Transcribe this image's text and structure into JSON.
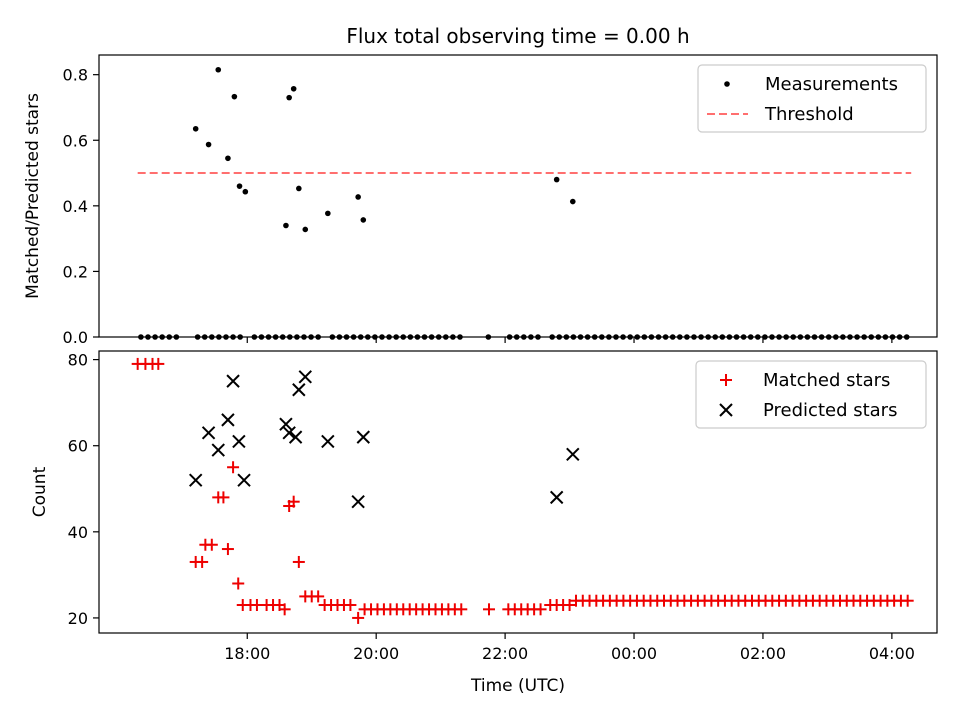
{
  "figure_title": "Flux total observing time = 0.00 h",
  "colors": {
    "measurement": "#000000",
    "threshold": "#ff6f6f",
    "matched": "#ee0000",
    "predicted": "#000000"
  },
  "chart_data": [
    {
      "type": "scatter",
      "title": "Flux total observing time = 0.00 h",
      "xlabel": "",
      "ylabel": "Matched/Predicted stars",
      "x_unit": "hours since 00:00 UTC of first day",
      "xlim": [
        15.7,
        28.7
      ],
      "ylim": [
        0,
        0.86
      ],
      "yticks": [
        0.0,
        0.2,
        0.4,
        0.6,
        0.8
      ],
      "ytick_labels": [
        "0.0",
        "0.2",
        "0.4",
        "0.6",
        "0.8"
      ],
      "legend": {
        "placement": "upper-right",
        "entries": [
          "Measurements",
          "Threshold"
        ]
      },
      "threshold": {
        "name": "Threshold",
        "value": 0.5,
        "x_range": [
          16.3,
          28.3
        ]
      },
      "series": [
        {
          "name": "Measurements",
          "points": [
            [
              17.2,
              0.635
            ],
            [
              17.4,
              0.587
            ],
            [
              17.55,
              0.815
            ],
            [
              17.7,
              0.545
            ],
            [
              17.8,
              0.733
            ],
            [
              17.88,
              0.46
            ],
            [
              17.97,
              0.443
            ],
            [
              18.6,
              0.34
            ],
            [
              18.65,
              0.73
            ],
            [
              18.72,
              0.757
            ],
            [
              18.8,
              0.453
            ],
            [
              18.9,
              0.328
            ],
            [
              19.25,
              0.377
            ],
            [
              19.72,
              0.427
            ],
            [
              19.8,
              0.357
            ],
            [
              22.8,
              0.48
            ],
            [
              23.05,
              0.413
            ]
          ],
          "zero_x_start": 16.35,
          "zero_x_end": 28.3,
          "zero_x_step": 0.11
        }
      ]
    },
    {
      "type": "scatter",
      "title": "",
      "xlabel": "Time (UTC)",
      "ylabel": "Count",
      "xlim": [
        15.7,
        28.7
      ],
      "ylim": [
        16.5,
        82
      ],
      "yticks": [
        20,
        40,
        60,
        80
      ],
      "ytick_labels": [
        "20",
        "40",
        "60",
        "80"
      ],
      "xticks": [
        18,
        20,
        22,
        24,
        26,
        28
      ],
      "xtick_labels": [
        "18:00",
        "20:00",
        "22:00",
        "00:00",
        "02:00",
        "04:00"
      ],
      "legend": {
        "placement": "upper-right",
        "entries": [
          "Matched stars",
          "Predicted stars"
        ]
      },
      "series": [
        {
          "name": "Matched stars",
          "marker": "plus",
          "points": [
            [
              16.3,
              79
            ],
            [
              16.42,
              79
            ],
            [
              16.53,
              79
            ],
            [
              16.62,
              79
            ],
            [
              17.2,
              33
            ],
            [
              17.3,
              33
            ],
            [
              17.35,
              37
            ],
            [
              17.45,
              37
            ],
            [
              17.55,
              48
            ],
            [
              17.63,
              48
            ],
            [
              17.7,
              36
            ],
            [
              17.78,
              55
            ],
            [
              17.86,
              28
            ],
            [
              17.93,
              23
            ],
            [
              18.05,
              23
            ],
            [
              18.15,
              23
            ],
            [
              18.3,
              23
            ],
            [
              18.4,
              23
            ],
            [
              18.5,
              23
            ],
            [
              18.58,
              22
            ],
            [
              18.65,
              46
            ],
            [
              18.72,
              47
            ],
            [
              18.8,
              33
            ],
            [
              18.9,
              25
            ],
            [
              19.0,
              25
            ],
            [
              19.1,
              25
            ],
            [
              19.2,
              23
            ],
            [
              19.3,
              23
            ],
            [
              19.4,
              23
            ],
            [
              19.5,
              23
            ],
            [
              19.6,
              23
            ],
            [
              19.72,
              20
            ],
            [
              19.82,
              22
            ],
            [
              19.92,
              22
            ],
            [
              20.02,
              22
            ],
            [
              20.12,
              22
            ],
            [
              20.22,
              22
            ],
            [
              20.32,
              22
            ],
            [
              20.42,
              22
            ],
            [
              20.52,
              22
            ],
            [
              20.62,
              22
            ],
            [
              20.72,
              22
            ],
            [
              20.82,
              22
            ],
            [
              20.92,
              22
            ],
            [
              21.02,
              22
            ],
            [
              21.12,
              22
            ],
            [
              21.22,
              22
            ],
            [
              21.32,
              22
            ],
            [
              21.75,
              22
            ],
            [
              22.05,
              22
            ],
            [
              22.15,
              22
            ],
            [
              22.25,
              22
            ],
            [
              22.35,
              22
            ],
            [
              22.45,
              22
            ],
            [
              22.55,
              22
            ],
            [
              22.7,
              23
            ],
            [
              22.8,
              23
            ],
            [
              22.9,
              23
            ],
            [
              23.0,
              23
            ]
          ],
          "constant_run": {
            "value": 24,
            "x_start": 23.1,
            "x_end": 28.3,
            "x_step": 0.105
          }
        },
        {
          "name": "Predicted stars",
          "marker": "x",
          "points": [
            [
              17.2,
              52
            ],
            [
              17.4,
              63
            ],
            [
              17.55,
              59
            ],
            [
              17.7,
              66
            ],
            [
              17.78,
              75
            ],
            [
              17.87,
              61
            ],
            [
              17.95,
              52
            ],
            [
              18.6,
              65
            ],
            [
              18.65,
              63
            ],
            [
              18.75,
              62
            ],
            [
              18.8,
              73
            ],
            [
              18.9,
              76
            ],
            [
              19.25,
              61
            ],
            [
              19.72,
              47
            ],
            [
              19.8,
              62
            ],
            [
              22.8,
              48
            ],
            [
              23.05,
              58
            ]
          ]
        }
      ]
    }
  ]
}
